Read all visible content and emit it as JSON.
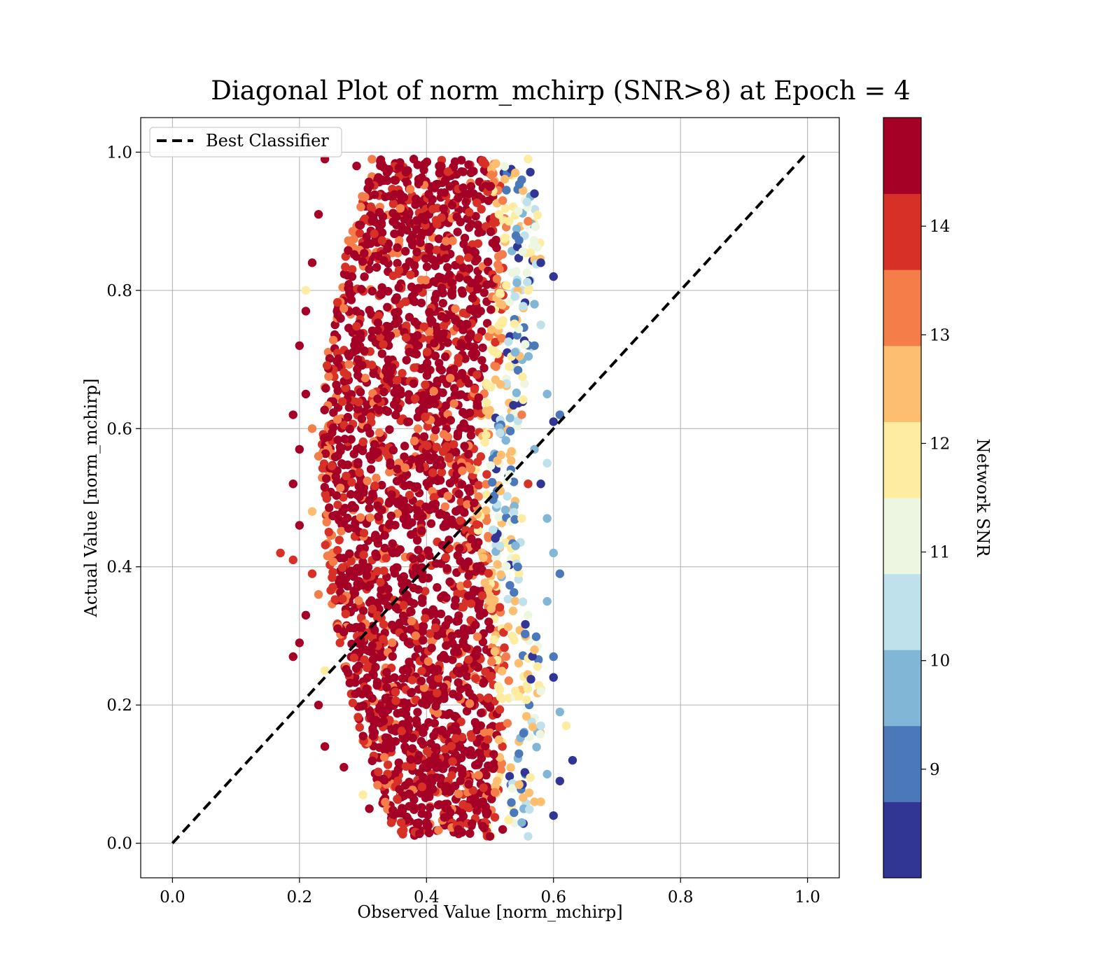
{
  "chart_data": {
    "type": "scatter",
    "title": "Diagonal Plot of norm_mchirp (SNR>8) at Epoch = 4",
    "xlabel": "Observed Value [norm_mchirp]",
    "ylabel": "Actual Value [norm_mchirp]",
    "xlim": [
      -0.05,
      1.05
    ],
    "ylim": [
      -0.05,
      1.05
    ],
    "xticks": [
      "0.0",
      "0.2",
      "0.4",
      "0.6",
      "0.8",
      "1.0"
    ],
    "yticks": [
      "0.0",
      "0.2",
      "0.4",
      "0.6",
      "0.8",
      "1.0"
    ],
    "grid": true,
    "legend": {
      "placement": "upper-left",
      "entries": [
        "Best Classifier"
      ]
    },
    "best_classifier": {
      "x": [
        0.0,
        1.0
      ],
      "y": [
        0.0,
        1.0
      ],
      "style": "dashed",
      "color": "#000000"
    },
    "colorbar": {
      "label": "Network SNR",
      "min": 8.0,
      "max": 15.0,
      "ticks": [
        "9",
        "10",
        "11",
        "12",
        "13",
        "14"
      ],
      "tick_values": [
        9,
        10,
        11,
        12,
        13,
        14
      ],
      "colors": [
        "#313695",
        "#4a78b8",
        "#82b6d6",
        "#bfe1eb",
        "#edf6e0",
        "#feeda1",
        "#fdbe6f",
        "#f47d4a",
        "#d73027",
        "#a50026"
      ]
    },
    "series": [
      {
        "points": [
          [
            0.29,
            0.98,
            14.9
          ],
          [
            0.33,
            0.96,
            14.9
          ],
          [
            0.38,
            0.99,
            14.9
          ],
          [
            0.42,
            0.98,
            14.9
          ],
          [
            0.47,
            0.97,
            14.9
          ],
          [
            0.5,
            0.95,
            14.5
          ],
          [
            0.52,
            0.93,
            13.0
          ],
          [
            0.53,
            0.9,
            12.0
          ],
          [
            0.55,
            0.96,
            9.0
          ],
          [
            0.57,
            0.94,
            8.2
          ],
          [
            0.24,
            0.99,
            14.9
          ],
          [
            0.23,
            0.91,
            14.9
          ],
          [
            0.22,
            0.84,
            14.9
          ],
          [
            0.21,
            0.77,
            14.9
          ],
          [
            0.2,
            0.72,
            14.9
          ],
          [
            0.21,
            0.65,
            14.9
          ],
          [
            0.19,
            0.62,
            14.9
          ],
          [
            0.2,
            0.57,
            14.9
          ],
          [
            0.19,
            0.52,
            14.9
          ],
          [
            0.2,
            0.46,
            14.9
          ],
          [
            0.17,
            0.42,
            14.2
          ],
          [
            0.19,
            0.41,
            14.2
          ],
          [
            0.22,
            0.39,
            14.2
          ],
          [
            0.21,
            0.33,
            14.9
          ],
          [
            0.2,
            0.29,
            14.9
          ],
          [
            0.19,
            0.27,
            14.9
          ],
          [
            0.23,
            0.2,
            14.9
          ],
          [
            0.24,
            0.14,
            14.9
          ],
          [
            0.27,
            0.11,
            14.9
          ],
          [
            0.31,
            0.05,
            14.9
          ],
          [
            0.36,
            0.03,
            14.2
          ],
          [
            0.4,
            0.03,
            14.9
          ],
          [
            0.45,
            0.02,
            14.9
          ],
          [
            0.5,
            0.01,
            14.9
          ],
          [
            0.52,
            0.02,
            14.9
          ],
          [
            0.21,
            0.8,
            11.8
          ],
          [
            0.3,
            0.07,
            12.0
          ],
          [
            0.56,
            0.99,
            12.0
          ],
          [
            0.54,
            0.97,
            12.5
          ],
          [
            0.56,
            0.9,
            13.0
          ],
          [
            0.6,
            0.82,
            8.2
          ],
          [
            0.58,
            0.84,
            8.2
          ],
          [
            0.57,
            0.72,
            9.2
          ],
          [
            0.59,
            0.65,
            9.6
          ],
          [
            0.6,
            0.61,
            8.2
          ],
          [
            0.61,
            0.62,
            9.2
          ],
          [
            0.57,
            0.57,
            9.8
          ],
          [
            0.58,
            0.52,
            8.2
          ],
          [
            0.59,
            0.47,
            9.8
          ],
          [
            0.6,
            0.42,
            9.6
          ],
          [
            0.61,
            0.39,
            9.2
          ],
          [
            0.59,
            0.35,
            9.6
          ],
          [
            0.6,
            0.27,
            9.2
          ],
          [
            0.6,
            0.24,
            8.2
          ],
          [
            0.61,
            0.19,
            9.6
          ],
          [
            0.62,
            0.17,
            11.8
          ],
          [
            0.63,
            0.12,
            8.2
          ],
          [
            0.59,
            0.1,
            9.6
          ],
          [
            0.61,
            0.09,
            8.2
          ],
          [
            0.6,
            0.04,
            8.2
          ],
          [
            0.57,
            0.06,
            12.5
          ],
          [
            0.58,
            0.06,
            12.5
          ],
          [
            0.55,
            0.03,
            9.6
          ],
          [
            0.56,
            0.01,
            10.5
          ],
          [
            0.58,
            0.17,
            10.5
          ],
          [
            0.59,
            0.55,
            10.5
          ],
          [
            0.58,
            0.75,
            10.5
          ],
          [
            0.56,
            0.8,
            12.0
          ],
          [
            0.57,
            0.78,
            9.6
          ],
          [
            0.55,
            0.47,
            11.5
          ],
          [
            0.56,
            0.33,
            10.8
          ],
          [
            0.57,
            0.28,
            12.5
          ],
          [
            0.58,
            0.22,
            11.0
          ],
          [
            0.55,
            0.62,
            13.5
          ],
          [
            0.56,
            0.52,
            14.2
          ],
          [
            0.23,
            0.56,
            13.5
          ],
          [
            0.22,
            0.48,
            12.5
          ],
          [
            0.23,
            0.36,
            13.5
          ],
          [
            0.22,
            0.6,
            13.0
          ],
          [
            0.24,
            0.25,
            12.0
          ]
        ]
      }
    ]
  }
}
